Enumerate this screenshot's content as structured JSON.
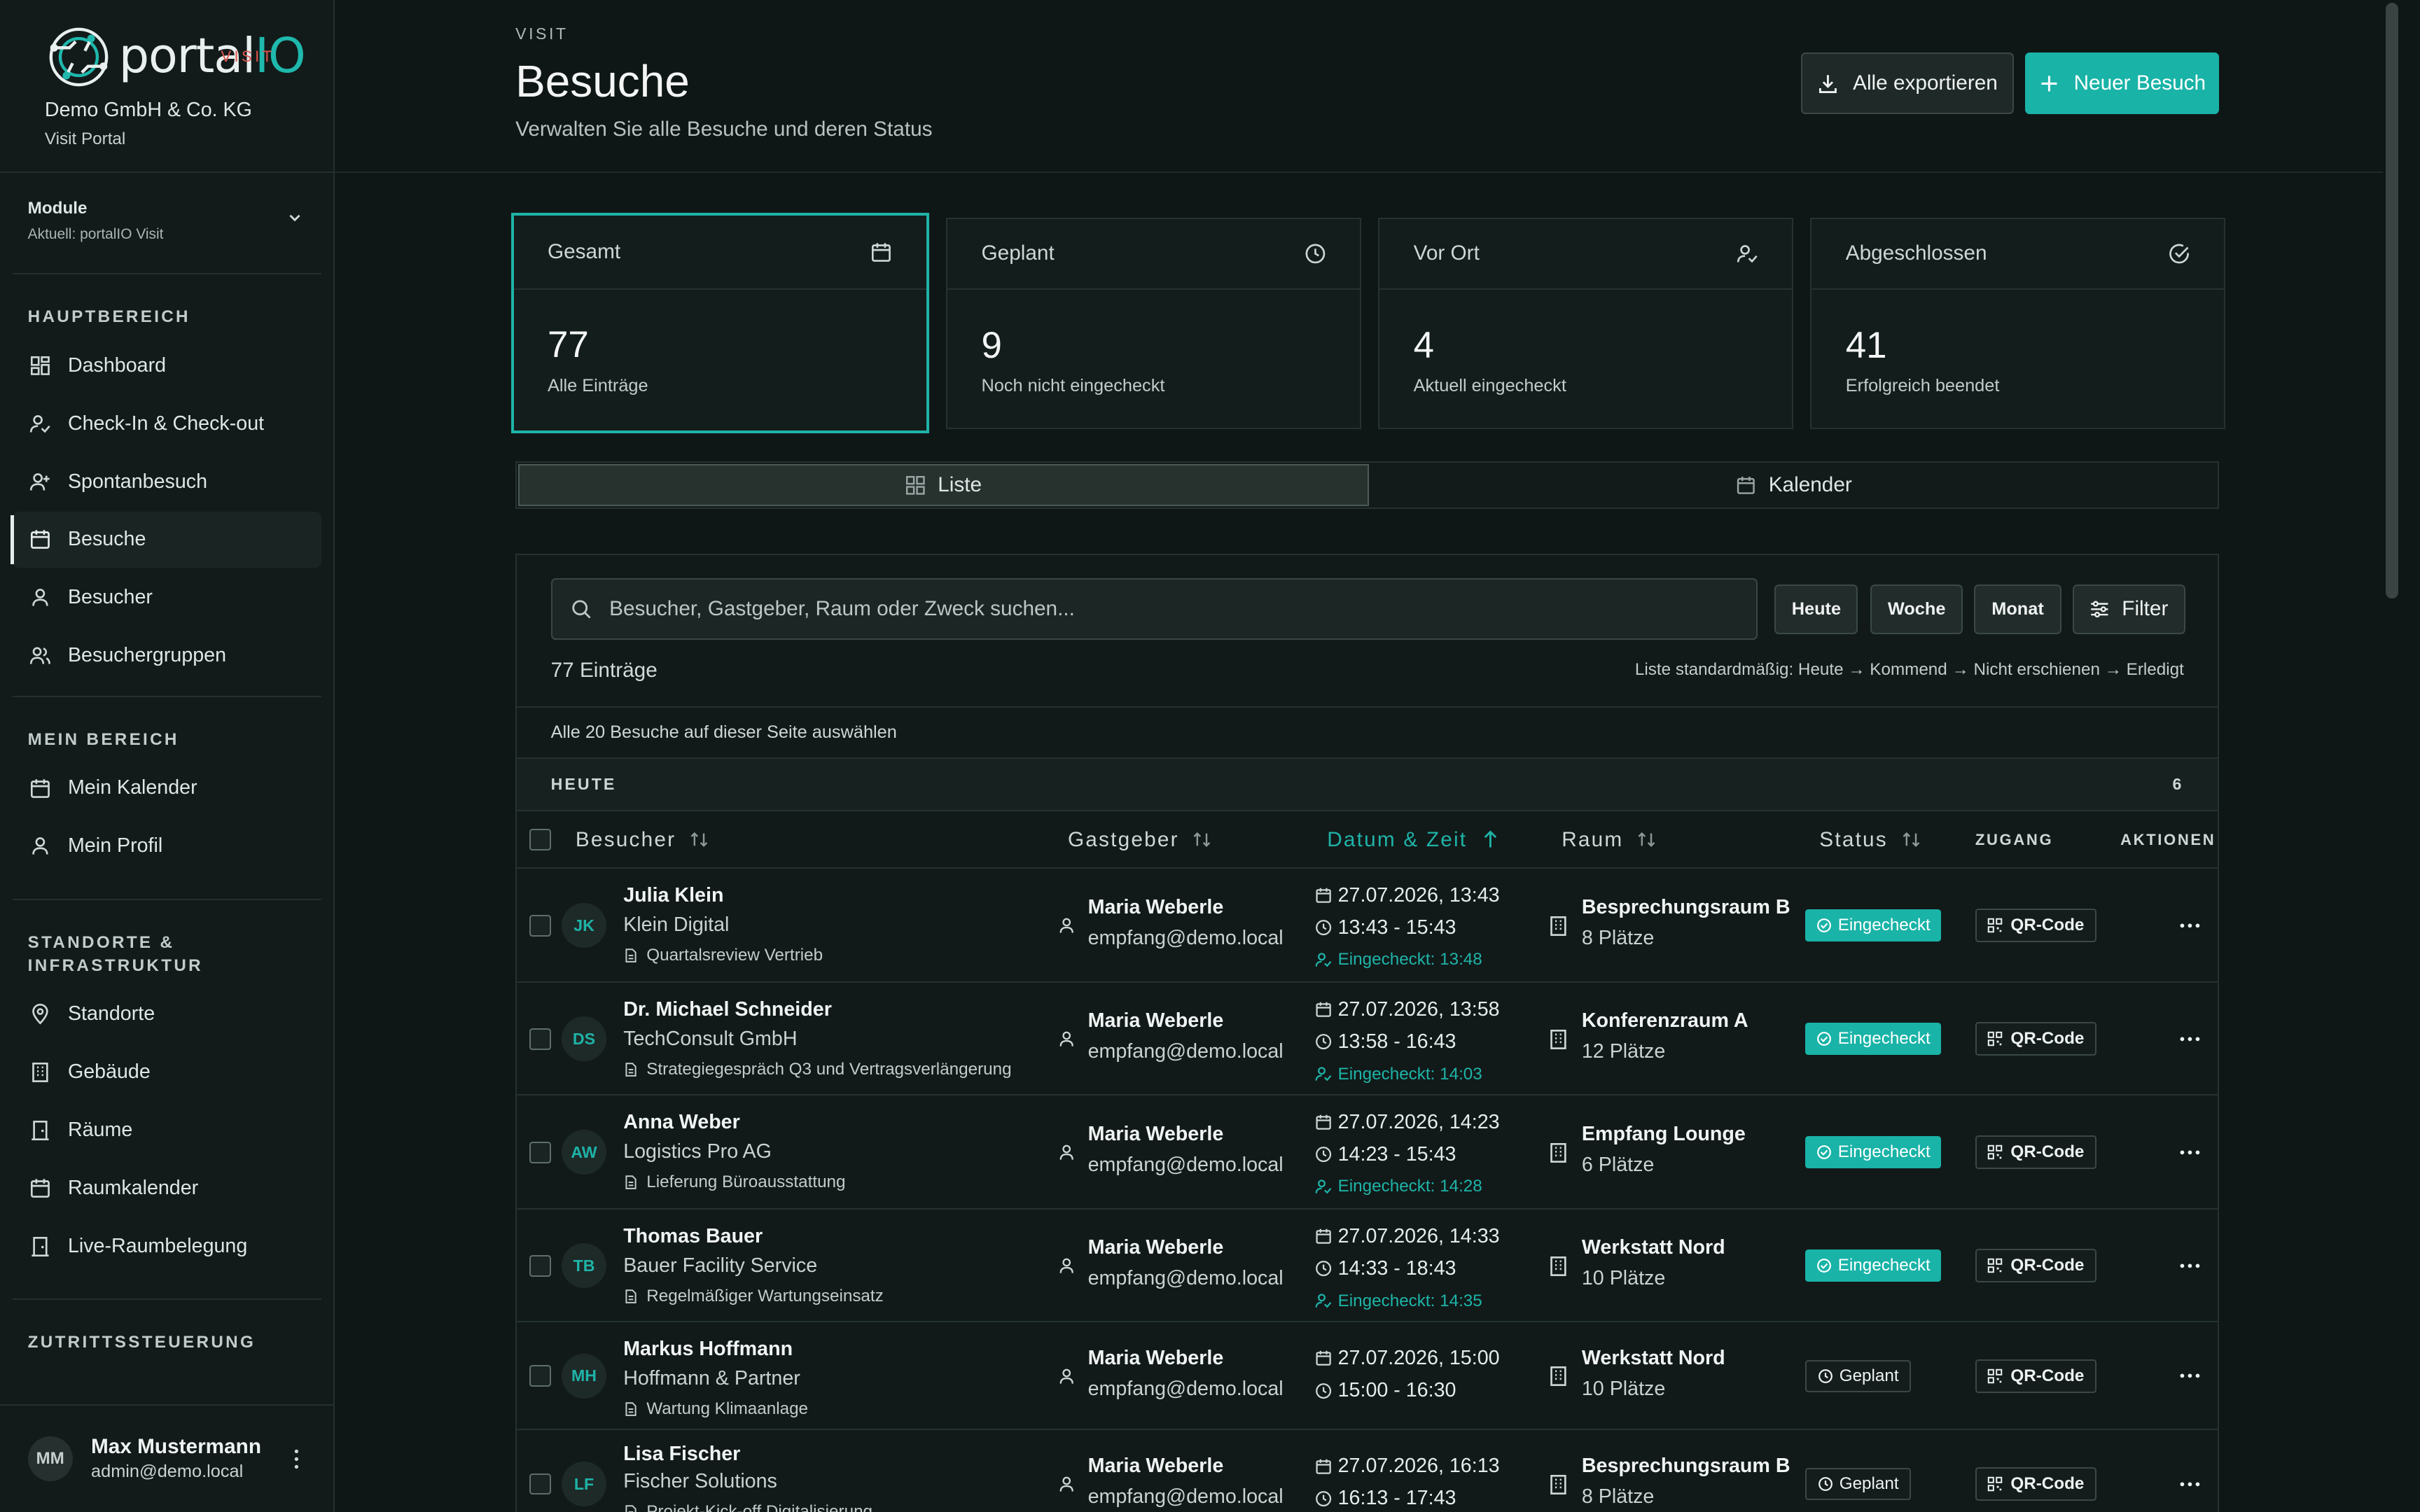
{
  "brand": {
    "name_a": "portal",
    "name_b": "IO",
    "sub": "VISIT",
    "company": "Demo GmbH & Co. KG",
    "portal": "Visit Portal"
  },
  "module": {
    "title": "Module",
    "current": "Aktuell: portalIO Visit"
  },
  "nav": {
    "main_head": "HAUPTBEREICH",
    "main": [
      "Dashboard",
      "Check-In & Check-out",
      "Spontanbesuch",
      "Besuche",
      "Besucher",
      "Besuchergruppen"
    ],
    "mine_head": "MEIN BEREICH",
    "mine": [
      "Mein Kalender",
      "Mein Profil"
    ],
    "infra_head": "STANDORTE & INFRASTRUKTUR",
    "infra": [
      "Standorte",
      "Gebäude",
      "Räume",
      "Raumkalender",
      "Live-Raumbelegung"
    ],
    "access_head": "ZUTRITTSSTEUERUNG"
  },
  "user": {
    "initials": "MM",
    "name": "Max Mustermann",
    "email": "admin@demo.local"
  },
  "header": {
    "eyebrow": "VISIT",
    "title": "Besuche",
    "subtitle": "Verwalten Sie alle Besuche und deren Status",
    "export": "Alle exportieren",
    "new": "Neuer Besuch"
  },
  "stats": [
    {
      "title": "Gesamt",
      "value": "77",
      "label": "Alle Einträge"
    },
    {
      "title": "Geplant",
      "value": "9",
      "label": "Noch nicht eingecheckt"
    },
    {
      "title": "Vor Ort",
      "value": "4",
      "label": "Aktuell eingecheckt"
    },
    {
      "title": "Abgeschlossen",
      "value": "41",
      "label": "Erfolgreich beendet"
    }
  ],
  "tabs": {
    "list": "Liste",
    "calendar": "Kalender"
  },
  "toolbar": {
    "placeholder": "Besucher, Gastgeber, Raum oder Zweck suchen...",
    "today": "Heute",
    "week": "Woche",
    "month": "Monat",
    "filter": "Filter",
    "count": "77 Einträge",
    "hint": "Liste standardmäßig: Heute → Kommend → Nicht erschienen → Erledigt",
    "select_all": "Alle 20 Besuche auf dieser Seite auswählen"
  },
  "group": {
    "label": "HEUTE",
    "count": "6"
  },
  "columns": {
    "visitor": "Besucher",
    "host": "Gastgeber",
    "datetime": "Datum & Zeit",
    "room": "Raum",
    "status": "Status",
    "access": "ZUGANG",
    "actions": "AKTIONEN"
  },
  "rows": [
    {
      "initials": "JK",
      "name": "Julia Klein",
      "company": "Klein Digital",
      "purpose": "Quartalsreview Vertrieb",
      "host": "Maria Weberle",
      "host_email": "empfang@demo.local",
      "date": "27.07.2026, 13:43",
      "time": "13:43 - 15:43",
      "checked": "Eingecheckt: 13:48",
      "room": "Besprechungsraum B",
      "seats": "8 Plätze",
      "status": "Eingecheckt",
      "access": "QR-Code"
    },
    {
      "initials": "DS",
      "name": "Dr. Michael Schneider",
      "company": "TechConsult GmbH",
      "purpose": "Strategiegespräch Q3 und Vertragsverlängerung",
      "host": "Maria Weberle",
      "host_email": "empfang@demo.local",
      "date": "27.07.2026, 13:58",
      "time": "13:58 - 16:43",
      "checked": "Eingecheckt: 14:03",
      "room": "Konferenzraum A",
      "seats": "12 Plätze",
      "status": "Eingecheckt",
      "access": "QR-Code"
    },
    {
      "initials": "AW",
      "name": "Anna Weber",
      "company": "Logistics Pro AG",
      "purpose": "Lieferung Büroausstattung",
      "host": "Maria Weberle",
      "host_email": "empfang@demo.local",
      "date": "27.07.2026, 14:23",
      "time": "14:23 - 15:43",
      "checked": "Eingecheckt: 14:28",
      "room": "Empfang Lounge",
      "seats": "6 Plätze",
      "status": "Eingecheckt",
      "access": "QR-Code"
    },
    {
      "initials": "TB",
      "name": "Thomas Bauer",
      "company": "Bauer Facility Service",
      "purpose": "Regelmäßiger Wartungseinsatz",
      "host": "Maria Weberle",
      "host_email": "empfang@demo.local",
      "date": "27.07.2026, 14:33",
      "time": "14:33 - 18:43",
      "checked": "Eingecheckt: 14:35",
      "room": "Werkstatt Nord",
      "seats": "10 Plätze",
      "status": "Eingecheckt",
      "access": "QR-Code"
    },
    {
      "initials": "MH",
      "name": "Markus Hoffmann",
      "company": "Hoffmann & Partner",
      "purpose": "Wartung Klimaanlage",
      "host": "Maria Weberle",
      "host_email": "empfang@demo.local",
      "date": "27.07.2026, 15:00",
      "time": "15:00 - 16:30",
      "checked": "",
      "room": "Werkstatt Nord",
      "seats": "10 Plätze",
      "status": "Geplant",
      "access": "QR-Code"
    },
    {
      "initials": "LF",
      "name": "Lisa Fischer",
      "company": "Fischer Solutions",
      "purpose": "Projekt-Kick-off Digitalisierung",
      "host": "Maria Weberle",
      "host_email": "empfang@demo.local",
      "date": "27.07.2026, 16:13",
      "time": "16:13 - 17:43",
      "checked": "",
      "room": "Besprechungsraum B",
      "seats": "8 Plätze",
      "status": "Geplant",
      "access": "QR-Code"
    }
  ]
}
